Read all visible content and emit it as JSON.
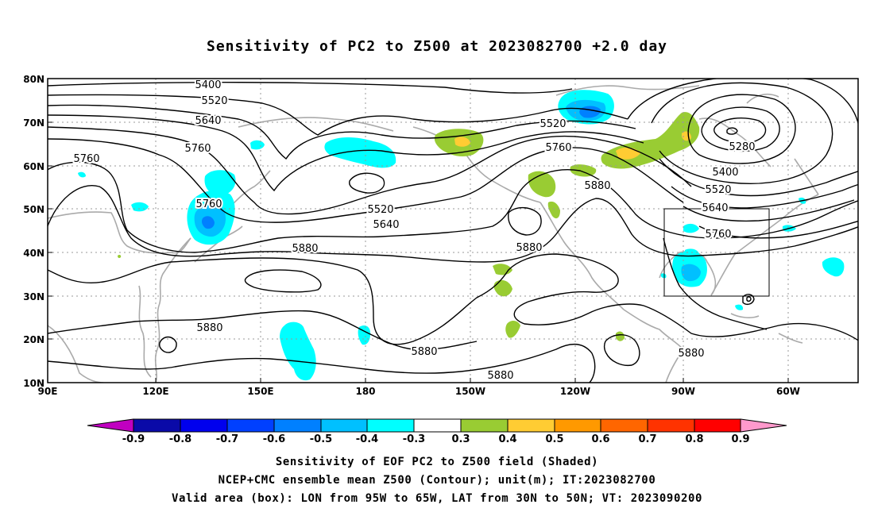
{
  "title": "Sensitivity of PC2 to Z500 at 2023082700 +2.0 day",
  "lat_labels": [
    "80N",
    "70N",
    "60N",
    "50N",
    "40N",
    "30N",
    "20N",
    "10N"
  ],
  "lon_labels": [
    "90E",
    "120E",
    "150E",
    "180",
    "150W",
    "120W",
    "90W",
    "60W"
  ],
  "contour_labels": {
    "c1": "5400",
    "c2": "5520",
    "c3": "5640",
    "c4": "5760",
    "c5": "5760",
    "c6": "5520",
    "c7": "5760",
    "c8": "5880",
    "c9": "5520",
    "c10": "5640",
    "c11": "5880",
    "c12": "5760",
    "c13": "5880",
    "c14": "5880",
    "c15": "5880",
    "c16": "5280",
    "c17": "5400",
    "c18": "5520",
    "c19": "5640",
    "c20": "5760",
    "c21": "5880",
    "c22": "5880"
  },
  "colorbar": {
    "labels": [
      "-0.9",
      "-0.8",
      "-0.7",
      "-0.6",
      "-0.5",
      "-0.4",
      "-0.3",
      "0.3",
      "0.4",
      "0.5",
      "0.6",
      "0.7",
      "0.8",
      "0.9"
    ],
    "colors": [
      "#0a0aa8",
      "#0000ee",
      "#0040ff",
      "#0080ff",
      "#00c0ff",
      "#00ffff",
      "#ffffff",
      "#99cc33",
      "#ffcc33",
      "#ff9900",
      "#ff6600",
      "#ff3300",
      "#ff0000"
    ],
    "end_low_color": "#c000c0",
    "end_high_color": "#ff99cc"
  },
  "footer": {
    "line1": "Sensitivity of EOF PC2 to Z500 field (Shaded)",
    "line2": "NCEP+CMC ensemble mean Z500 (Contour); unit(m); IT:2023082700",
    "line3": "Valid area (box): LON from 95W to 65W, LAT from 30N to 50N; VT: 2023090200"
  }
}
